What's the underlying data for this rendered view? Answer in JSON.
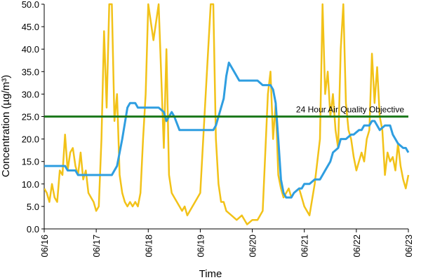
{
  "chart_data": {
    "type": "line",
    "title": "",
    "xlabel": "Time",
    "ylabel": "Concentration (µg/m³)",
    "xlim": [
      0,
      7
    ],
    "ylim": [
      0,
      50
    ],
    "x_tick_labels": [
      "06/16",
      "06/17",
      "06/18",
      "06/19",
      "06/20",
      "06/21",
      "06/22",
      "06/23"
    ],
    "y_tick_labels": [
      "0.0",
      "5.0",
      "10.0",
      "15.0",
      "20.0",
      "25.0",
      "30.0",
      "35.0",
      "40.0",
      "45.0",
      "50.0"
    ],
    "grid": false,
    "legend": "none",
    "annotations": [
      {
        "text": "24 Hour Air Quality Objective",
        "value": 25
      }
    ],
    "series": [
      {
        "color": "#f2c218",
        "x": [
          0.0,
          0.05,
          0.1,
          0.15,
          0.2,
          0.25,
          0.3,
          0.35,
          0.4,
          0.45,
          0.5,
          0.55,
          0.6,
          0.65,
          0.7,
          0.75,
          0.8,
          0.85,
          0.9,
          0.95,
          1.0,
          1.05,
          1.1,
          1.15,
          1.2,
          1.25,
          1.3,
          1.35,
          1.4,
          1.45,
          1.5,
          1.55,
          1.6,
          1.65,
          1.7,
          1.75,
          1.8,
          1.85,
          1.9,
          1.95,
          2.0,
          2.1,
          2.2,
          2.3,
          2.35,
          2.4,
          2.45,
          2.5,
          2.55,
          2.6,
          2.65,
          2.7,
          2.75,
          2.8,
          2.9,
          3.0,
          3.1,
          3.2,
          3.25,
          3.3,
          3.35,
          3.4,
          3.45,
          3.5,
          3.6,
          3.7,
          3.8,
          3.9,
          4.0,
          4.1,
          4.2,
          4.3,
          4.35,
          4.4,
          4.45,
          4.5,
          4.55,
          4.6,
          4.65,
          4.7,
          4.75,
          4.8,
          4.9,
          5.0,
          5.1,
          5.2,
          5.3,
          5.35,
          5.4,
          5.45,
          5.5,
          5.55,
          5.6,
          5.65,
          5.7,
          5.75,
          5.8,
          5.85,
          5.9,
          5.95,
          6.0,
          6.05,
          6.1,
          6.15,
          6.2,
          6.25,
          6.3,
          6.35,
          6.4,
          6.45,
          6.5,
          6.55,
          6.6,
          6.65,
          6.7,
          6.75,
          6.8,
          6.85,
          6.9,
          6.95,
          7.0
        ],
        "values": [
          9,
          8,
          6,
          10,
          7,
          6,
          13,
          12,
          21,
          13,
          17,
          18,
          14,
          12,
          17,
          11,
          13,
          8,
          7,
          6,
          4,
          5,
          20,
          44,
          27,
          50,
          50,
          24,
          30,
          12,
          8,
          6,
          5,
          6,
          5,
          6,
          5,
          8,
          20,
          30,
          50,
          42,
          50,
          18,
          40,
          12,
          8,
          7,
          6,
          5,
          4,
          5,
          3,
          4,
          6,
          8,
          29,
          50,
          50,
          20,
          10,
          6,
          6,
          4,
          3,
          2,
          3,
          1,
          2,
          2,
          4,
          30,
          35,
          20,
          28,
          12,
          9,
          7,
          8,
          9,
          7,
          8,
          9,
          5,
          3,
          10,
          20,
          50,
          30,
          35,
          25,
          30,
          22,
          18,
          40,
          50,
          28,
          22,
          20,
          16,
          13,
          15,
          17,
          15,
          20,
          22,
          39,
          28,
          36,
          25,
          22,
          12,
          17,
          15,
          16,
          13,
          19,
          14,
          11,
          9,
          12
        ]
      },
      {
        "color": "#2f9ee0",
        "x": [
          0.0,
          0.4,
          0.45,
          0.6,
          0.65,
          1.3,
          1.35,
          1.4,
          1.45,
          1.5,
          1.6,
          1.65,
          1.75,
          1.8,
          1.9,
          1.95,
          2.2,
          2.3,
          2.35,
          2.45,
          2.5,
          2.6,
          3.2,
          3.25,
          3.3,
          3.45,
          3.5,
          3.55,
          3.6,
          3.65,
          3.75,
          3.8,
          4.1,
          4.2,
          4.3,
          4.35,
          4.4,
          4.45,
          4.5,
          4.55,
          4.6,
          4.65,
          4.75,
          4.8,
          4.9,
          4.95,
          5.0,
          5.1,
          5.2,
          5.3,
          5.35,
          5.4,
          5.5,
          5.55,
          5.65,
          5.7,
          5.8,
          5.9,
          5.95,
          6.05,
          6.1,
          6.15,
          6.25,
          6.3,
          6.35,
          6.4,
          6.45,
          6.55,
          6.65,
          6.7,
          6.8,
          6.9,
          6.95,
          7.0
        ],
        "values": [
          14,
          14,
          13,
          13,
          12,
          12,
          13,
          14,
          17,
          20,
          27,
          28,
          28,
          27,
          27,
          27,
          27,
          26,
          24,
          26,
          25,
          22,
          22,
          22,
          23,
          29,
          34,
          37,
          36,
          35,
          33,
          33,
          33,
          32,
          32,
          32,
          31,
          28,
          20,
          11,
          8,
          7,
          7,
          8,
          9,
          9,
          10,
          10,
          11,
          11,
          12,
          13,
          15,
          17,
          18,
          20,
          20,
          21,
          21,
          22,
          22,
          23,
          23,
          24,
          24,
          23,
          22,
          23,
          23,
          21,
          19,
          18,
          18,
          17
        ]
      },
      {
        "color": "#1f7a1f",
        "x": [
          0,
          7
        ],
        "values": [
          25,
          25
        ]
      }
    ]
  }
}
